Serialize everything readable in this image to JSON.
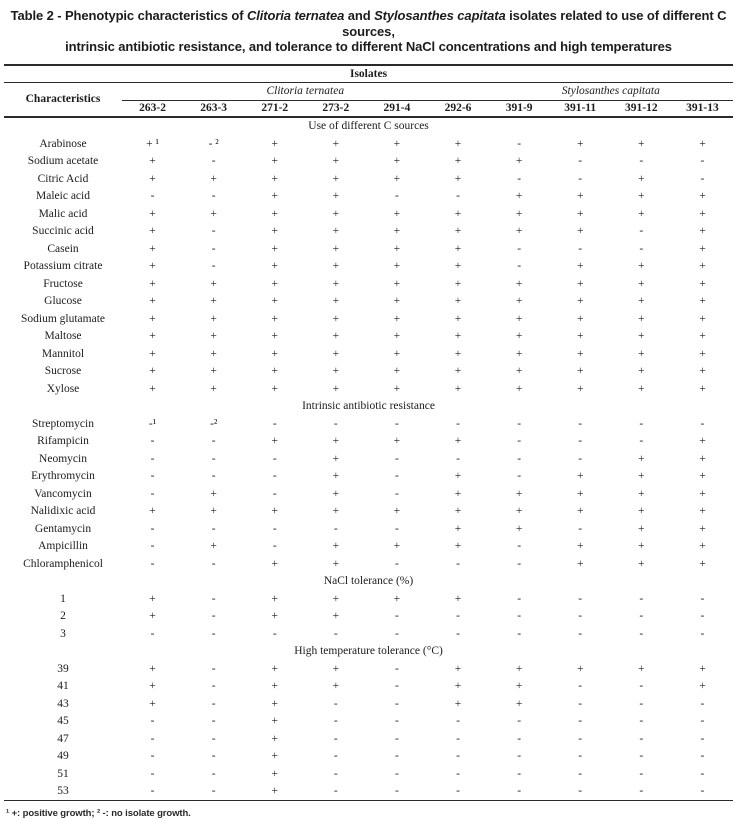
{
  "title": {
    "lines": [
      [
        {
          "text": "Table 2",
          "italic": false
        },
        {
          "text": " - Phenotypic characteristics of ",
          "italic": false
        },
        {
          "text": "Clitoria ternatea",
          "italic": true
        },
        {
          "text": " and ",
          "italic": false
        },
        {
          "text": "Stylosanthes capitata",
          "italic": true
        },
        {
          "text": " isolates related to use of different C sources,",
          "italic": false
        }
      ],
      [
        {
          "text": "intrinsic antibiotic resistance, and tolerance to different NaCl concentrations and high temperatures",
          "italic": false
        }
      ]
    ]
  },
  "table": {
    "isolates_label": "Isolates",
    "characteristics_label": "Characteristics",
    "groups": [
      {
        "name": "Clitoria ternatea",
        "span": 6
      },
      {
        "name": "Stylosanthes capitata",
        "span": 4
      }
    ],
    "columns": [
      "263-2",
      "263-3",
      "271-2",
      "273-2",
      "291-4",
      "292-6",
      "391-9",
      "391-11",
      "391-12",
      "391-13"
    ],
    "sections": [
      {
        "title": "Use of different C sources",
        "rows": [
          {
            "label": "Arabinose",
            "values": [
              "+ ¹",
              "- ²",
              "+",
              "+",
              "+",
              "+",
              "-",
              "+",
              "+",
              "+"
            ]
          },
          {
            "label": "Sodium acetate",
            "values": [
              "+",
              "-",
              "+",
              "+",
              "+",
              "+",
              "+",
              "-",
              "-",
              "-"
            ]
          },
          {
            "label": "Citric Acid",
            "values": [
              "+",
              "+",
              "+",
              "+",
              "+",
              "+",
              "-",
              "-",
              "+",
              "-"
            ]
          },
          {
            "label": "Maleic acid",
            "values": [
              "-",
              "-",
              "+",
              "+",
              "-",
              "-",
              "+",
              "+",
              "+",
              "+"
            ]
          },
          {
            "label": "Malic acid",
            "values": [
              "+",
              "+",
              "+",
              "+",
              "+",
              "+",
              "+",
              "+",
              "+",
              "+"
            ]
          },
          {
            "label": "Succinic acid",
            "values": [
              "+",
              "-",
              "+",
              "+",
              "+",
              "+",
              "+",
              "+",
              "-",
              "+"
            ]
          },
          {
            "label": "Casein",
            "values": [
              "+",
              "-",
              "+",
              "+",
              "+",
              "+",
              "-",
              "-",
              "-",
              "+"
            ]
          },
          {
            "label": "Potassium citrate",
            "values": [
              "+",
              "-",
              "+",
              "+",
              "+",
              "+",
              "-",
              "+",
              "+",
              "+"
            ]
          },
          {
            "label": "Fructose",
            "values": [
              "+",
              "+",
              "+",
              "+",
              "+",
              "+",
              "+",
              "+",
              "+",
              "+"
            ]
          },
          {
            "label": "Glucose",
            "values": [
              "+",
              "+",
              "+",
              "+",
              "+",
              "+",
              "+",
              "+",
              "+",
              "+"
            ]
          },
          {
            "label": "Sodium glutamate",
            "values": [
              "+",
              "+",
              "+",
              "+",
              "+",
              "+",
              "+",
              "+",
              "+",
              "+"
            ]
          },
          {
            "label": "Maltose",
            "values": [
              "+",
              "+",
              "+",
              "+",
              "+",
              "+",
              "+",
              "+",
              "+",
              "+"
            ]
          },
          {
            "label": "Mannitol",
            "values": [
              "+",
              "+",
              "+",
              "+",
              "+",
              "+",
              "+",
              "+",
              "+",
              "+"
            ]
          },
          {
            "label": "Sucrose",
            "values": [
              "+",
              "+",
              "+",
              "+",
              "+",
              "+",
              "+",
              "+",
              "+",
              "+"
            ]
          },
          {
            "label": "Xylose",
            "values": [
              "+",
              "+",
              "+",
              "+",
              "+",
              "+",
              "+",
              "+",
              "+",
              "+"
            ]
          }
        ]
      },
      {
        "title": "Intrinsic antibiotic resistance",
        "rows": [
          {
            "label": "Streptomycin",
            "values": [
              "-¹",
              "-²",
              "-",
              "-",
              "-",
              "-",
              "-",
              "-",
              "-",
              "-"
            ]
          },
          {
            "label": "Rifampicin",
            "values": [
              "-",
              "-",
              "+",
              "+",
              "+",
              "+",
              "-",
              "-",
              "-",
              "+"
            ]
          },
          {
            "label": "Neomycin",
            "values": [
              "-",
              "-",
              "-",
              "+",
              "-",
              "-",
              "-",
              "-",
              "+",
              "+"
            ]
          },
          {
            "label": "Erythromycin",
            "values": [
              "-",
              "-",
              "-",
              "+",
              "-",
              "+",
              "-",
              "+",
              "+",
              "+"
            ]
          },
          {
            "label": "Vancomycin",
            "values": [
              "-",
              "+",
              "-",
              "+",
              "-",
              "+",
              "+",
              "+",
              "+",
              "+"
            ]
          },
          {
            "label": "Nalidixic acid",
            "values": [
              "+",
              "+",
              "+",
              "+",
              "+",
              "+",
              "+",
              "+",
              "+",
              "+"
            ]
          },
          {
            "label": "Gentamycin",
            "values": [
              "-",
              "-",
              "-",
              "-",
              "-",
              "+",
              "+",
              "-",
              "+",
              "+"
            ]
          },
          {
            "label": "Ampicillin",
            "values": [
              "-",
              "+",
              "-",
              "+",
              "+",
              "+",
              "-",
              "+",
              "+",
              "+"
            ]
          },
          {
            "label": "Chloramphenicol",
            "values": [
              "-",
              "-",
              "+",
              "+",
              "-",
              "-",
              "-",
              "+",
              "+",
              "+"
            ]
          }
        ]
      },
      {
        "title": "NaCl tolerance (%)",
        "rows": [
          {
            "label": "1",
            "values": [
              "+",
              "-",
              "+",
              "+",
              "+",
              "+",
              "-",
              "-",
              "-",
              "-"
            ]
          },
          {
            "label": "2",
            "values": [
              "+",
              "-",
              "+",
              "+",
              "-",
              "-",
              "-",
              "-",
              "-",
              "-"
            ]
          },
          {
            "label": "3",
            "values": [
              "-",
              "-",
              "-",
              "-",
              "-",
              "-",
              "-",
              "-",
              "-",
              "-"
            ]
          }
        ]
      },
      {
        "title": "High temperature tolerance (°C)",
        "rows": [
          {
            "label": "39",
            "values": [
              "+",
              "-",
              "+",
              "+",
              "-",
              "+",
              "+",
              "+",
              "+",
              "+"
            ]
          },
          {
            "label": "41",
            "values": [
              "+",
              "-",
              "+",
              "+",
              "-",
              "+",
              "+",
              "-",
              "-",
              "+"
            ]
          },
          {
            "label": "43",
            "values": [
              "+",
              "-",
              "+",
              "-",
              "-",
              "+",
              "+",
              "-",
              "-",
              "-"
            ]
          },
          {
            "label": "45",
            "values": [
              "-",
              "-",
              "+",
              "-",
              "-",
              "-",
              "-",
              "-",
              "-",
              "-"
            ]
          },
          {
            "label": "47",
            "values": [
              "-",
              "-",
              "+",
              "-",
              "-",
              "-",
              "-",
              "-",
              "-",
              "-"
            ]
          },
          {
            "label": "49",
            "values": [
              "-",
              "-",
              "+",
              "-",
              "-",
              "-",
              "-",
              "-",
              "-",
              "-"
            ]
          },
          {
            "label": "51",
            "values": [
              "-",
              "-",
              "+",
              "-",
              "-",
              "-",
              "-",
              "-",
              "-",
              "-"
            ]
          },
          {
            "label": "53",
            "values": [
              "-",
              "-",
              "+",
              "-",
              "-",
              "-",
              "-",
              "-",
              "-",
              "-"
            ]
          }
        ]
      }
    ]
  },
  "footnote": "¹ +: positive growth; ² -: no isolate growth."
}
